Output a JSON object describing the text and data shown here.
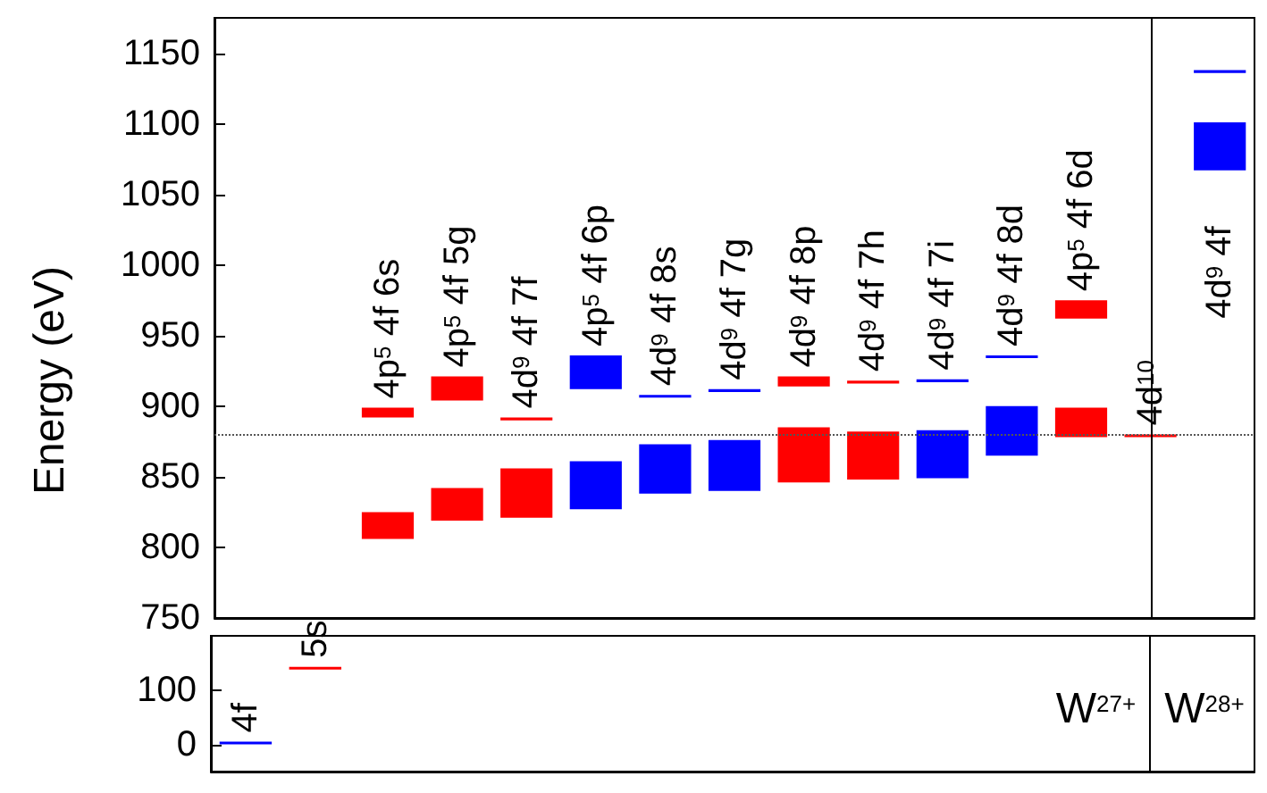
{
  "chart_data": [
    {
      "type": "bar",
      "ylabel": "Energy (eV)",
      "categories": [
        null,
        null,
        "4p$^{5}$ 4f 6s",
        "4p$^{5}$ 4f 5g",
        "4d$^{9}$ 4f 7f",
        "4p$^{5}$ 4f 6p",
        "4d$^{9}$ 4f 8s",
        "4d$^{9}$ 4f 7g",
        "4d$^{9}$ 4f 8p",
        "4d$^{9}$ 4f 7h",
        "4d$^{9}$ 4f 7i",
        "4d$^{9}$ 4f 8d",
        "4p$^{5}$ 4f 6d",
        "4d$^{10}$",
        "4d$^{9}$ 4f"
      ],
      "ylim": [
        750,
        1175
      ],
      "yticks": [
        750,
        800,
        850,
        900,
        950,
        1000,
        1050,
        1100,
        1150
      ],
      "tick_labels": "y",
      "grid": false,
      "series": [
        {
          "base": [
            null,
            null,
            806,
            819,
            821,
            827,
            838,
            840,
            846,
            848,
            849,
            865,
            878,
            null,
            1067
          ],
          "values": [
            null,
            null,
            19,
            23,
            35,
            34,
            35,
            36,
            39,
            34,
            34,
            35,
            21,
            null,
            34
          ],
          "colors": [
            null,
            null,
            "#ff0000",
            "#ff0000",
            "#ff0000",
            "#0000ff",
            "#0000ff",
            "#0000ff",
            "#ff0000",
            "#ff0000",
            "#0000ff",
            "#0000ff",
            "#ff0000",
            null,
            "#0000ff"
          ]
        },
        {
          "base": [
            null,
            null,
            892,
            904,
            890,
            912,
            906,
            910,
            914,
            916,
            917,
            934,
            962,
            878,
            1136
          ],
          "values": [
            null,
            null,
            7,
            17,
            2,
            24,
            2,
            2,
            7,
            2,
            2,
            2,
            13,
            2,
            2
          ],
          "colors": [
            null,
            null,
            "#ff0000",
            "#ff0000",
            "#ff0000",
            "#0000ff",
            "#0000ff",
            "#0000ff",
            "#ff0000",
            "#ff0000",
            "#0000ff",
            "#0000ff",
            "#ff0000",
            "#ff0000",
            "#0000ff"
          ]
        }
      ],
      "ref_lines": [
        {
          "axis": "y",
          "value": 880,
          "line_style": "dotted",
          "color": "#555555"
        },
        {
          "axis": "x",
          "value": "4d$^{10}$",
          "color": "#000000"
        }
      ]
    },
    {
      "type": "bar",
      "categories": [
        "4f",
        "5s",
        "4p$^{5}$ 4f 6s",
        "4p$^{5}$ 4f 5g",
        "4d$^{9}$ 4f 7f",
        "4p$^{5}$ 4f 6p",
        "4d$^{9}$ 4f 8s",
        "4d$^{9}$ 4f 7g",
        "4d$^{9}$ 4f 8p",
        "4d$^{9}$ 4f 7h",
        "4d$^{9}$ 4f 7i",
        "4d$^{9}$ 4f 8d",
        "4p$^{5}$ 4f 6d",
        "4d$^{10}$",
        "4d$^{9}$ 4f"
      ],
      "ylim": [
        -50,
        200
      ],
      "yticks": [
        0,
        100
      ],
      "tick_labels": "y",
      "grid": false,
      "series": [
        {
          "base": [
            0,
            138,
            null,
            null,
            null,
            null,
            null,
            null,
            null,
            null,
            null,
            null,
            null,
            null,
            null
          ],
          "values": [
            5,
            5,
            null,
            null,
            null,
            null,
            null,
            null,
            null,
            null,
            null,
            null,
            null,
            null,
            null
          ],
          "colors": [
            "#0000ff",
            "#ff0000",
            null,
            null,
            null,
            null,
            null,
            null,
            null,
            null,
            null,
            null,
            null,
            null,
            null
          ]
        }
      ],
      "ref_lines": [
        {
          "axis": "x",
          "value": "4d$^{10}$",
          "color": "#000000"
        }
      ],
      "annotations": [
        "W$^{27+}$",
        "W$^{28+}$"
      ]
    }
  ]
}
